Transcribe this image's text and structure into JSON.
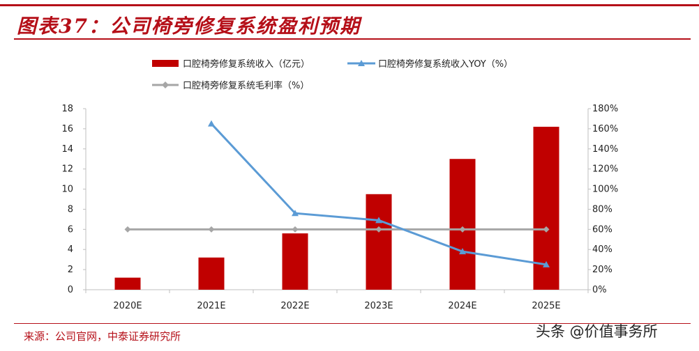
{
  "header": {
    "title": "图表37：公司椅旁修复系统盈利预期"
  },
  "footer": {
    "source": "来源：公司官网，中泰证券研究所",
    "watermark": "头条 @价值事务所"
  },
  "colors": {
    "bar": "#c00000",
    "yoy": "#5b9bd5",
    "margin": "#a6a6a6",
    "accent": "#b50f18"
  },
  "chart_data": {
    "type": "bar",
    "title": "",
    "xlabel": "",
    "ylabel": "",
    "categories": [
      "2020E",
      "2021E",
      "2022E",
      "2023E",
      "2024E",
      "2025E"
    ],
    "ylim": [
      0,
      18
    ],
    "y_ticks": [
      "0",
      "2",
      "4",
      "6",
      "8",
      "10",
      "12",
      "14",
      "16",
      "18"
    ],
    "y2lim": [
      0,
      180
    ],
    "y2_ticks": [
      "0%",
      "20%",
      "40%",
      "60%",
      "80%",
      "100%",
      "120%",
      "140%",
      "160%",
      "180%"
    ],
    "grid": false,
    "legend_position": "top",
    "series": [
      {
        "name": "口腔椅旁修复系统收入（亿元）",
        "type": "bar",
        "axis": "left",
        "values": [
          1.2,
          3.2,
          5.6,
          9.5,
          13.0,
          16.2
        ]
      },
      {
        "name": "口腔椅旁修复系统收入YOY（%）",
        "type": "line",
        "marker": "triangle",
        "axis": "right",
        "values": [
          null,
          165,
          76,
          69,
          38,
          25
        ]
      },
      {
        "name": "口腔椅旁修复系统毛利率（%）",
        "type": "line",
        "marker": "diamond",
        "axis": "right",
        "values": [
          60,
          60,
          60,
          60,
          60,
          60
        ]
      }
    ]
  }
}
